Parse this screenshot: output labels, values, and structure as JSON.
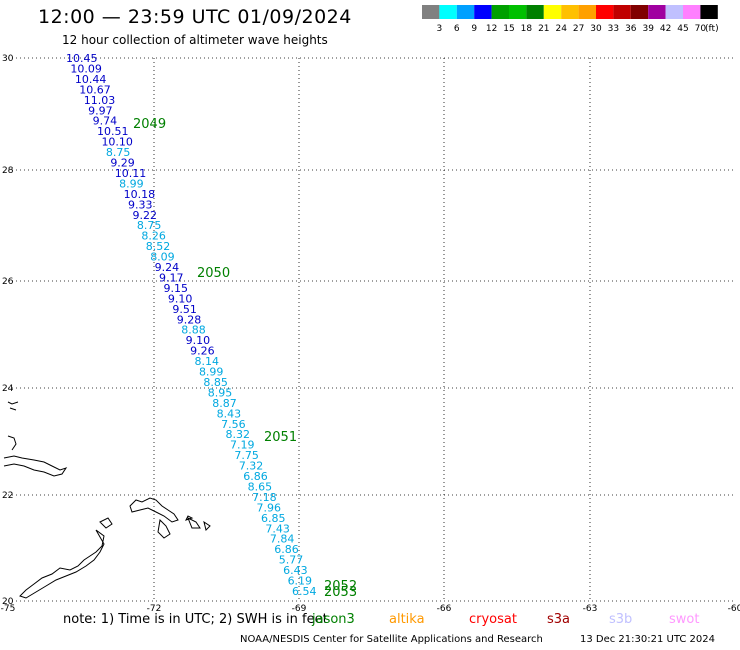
{
  "header": {
    "title": "12:00 — 23:59 UTC 01/09/2024",
    "subtitle": "12 hour collection of altimeter wave heights"
  },
  "colorbar": {
    "unit": "(ft)",
    "colors": [
      "#808080",
      "#00ffff",
      "#00a0ff",
      "#0000ff",
      "#00a000",
      "#00c000",
      "#008000",
      "#ffff00",
      "#ffc000",
      "#ffa000",
      "#ff0000",
      "#c00000",
      "#800000",
      "#a000a0",
      "#c0c0ff",
      "#ff80ff",
      "#000000"
    ],
    "labels": [
      "3",
      "6",
      "9",
      "12",
      "15",
      "18",
      "21",
      "24",
      "27",
      "30",
      "33",
      "36",
      "39",
      "42",
      "45",
      "70"
    ]
  },
  "axes": {
    "lon_labels": [
      "-75",
      "-72",
      "-69",
      "-66",
      "-63",
      "-60"
    ],
    "lat_labels": [
      "30",
      "28",
      "26",
      "24",
      "22",
      "20"
    ]
  },
  "track": {
    "labels": [
      {
        "v": "10.45",
        "c": "#0000c8"
      },
      {
        "v": "10.09",
        "c": "#0000c8"
      },
      {
        "v": "10.44",
        "c": "#0000c8"
      },
      {
        "v": "10.67",
        "c": "#0000c8"
      },
      {
        "v": "11.03",
        "c": "#0000c8"
      },
      {
        "v": "9.97",
        "c": "#0000c8"
      },
      {
        "v": "9.74",
        "c": "#0000c8"
      },
      {
        "v": "10.51",
        "c": "#0000c8"
      },
      {
        "v": "10.10",
        "c": "#0000c8"
      },
      {
        "v": "8.75",
        "c": "#00a8e0"
      },
      {
        "v": "9.29",
        "c": "#0000c8"
      },
      {
        "v": "10.11",
        "c": "#0000c8"
      },
      {
        "v": "8.99",
        "c": "#00a8e0"
      },
      {
        "v": "10.18",
        "c": "#0000c8"
      },
      {
        "v": "9.33",
        "c": "#0000c8"
      },
      {
        "v": "9.22",
        "c": "#0000c8"
      },
      {
        "v": "8.75",
        "c": "#00a8e0"
      },
      {
        "v": "8.26",
        "c": "#00a8e0"
      },
      {
        "v": "8.52",
        "c": "#00a8e0"
      },
      {
        "v": "8.09",
        "c": "#00a8e0"
      },
      {
        "v": "9.24",
        "c": "#0000c8"
      },
      {
        "v": "9.17",
        "c": "#0000c8"
      },
      {
        "v": "9.15",
        "c": "#0000c8"
      },
      {
        "v": "9.10",
        "c": "#0000c8"
      },
      {
        "v": "9.51",
        "c": "#0000c8"
      },
      {
        "v": "9.28",
        "c": "#0000c8"
      },
      {
        "v": "8.88",
        "c": "#00a8e0"
      },
      {
        "v": "9.10",
        "c": "#0000c8"
      },
      {
        "v": "9.26",
        "c": "#0000c8"
      },
      {
        "v": "8.14",
        "c": "#00a8e0"
      },
      {
        "v": "8.99",
        "c": "#00a8e0"
      },
      {
        "v": "8.85",
        "c": "#00a8e0"
      },
      {
        "v": "8.95",
        "c": "#00a8e0"
      },
      {
        "v": "8.87",
        "c": "#00a8e0"
      },
      {
        "v": "8.43",
        "c": "#00a8e0"
      },
      {
        "v": "7.56",
        "c": "#00a8e0"
      },
      {
        "v": "8.32",
        "c": "#00a8e0"
      },
      {
        "v": "7.19",
        "c": "#00a8e0"
      },
      {
        "v": "7.75",
        "c": "#00a8e0"
      },
      {
        "v": "7.32",
        "c": "#00a8e0"
      },
      {
        "v": "6.86",
        "c": "#00a8e0"
      },
      {
        "v": "8.65",
        "c": "#00a8e0"
      },
      {
        "v": "7.18",
        "c": "#00a8e0"
      },
      {
        "v": "7.96",
        "c": "#00a8e0"
      },
      {
        "v": "6.85",
        "c": "#00a8e0"
      },
      {
        "v": "7.43",
        "c": "#00a8e0"
      },
      {
        "v": "7.84",
        "c": "#00a8e0"
      },
      {
        "v": "6.86",
        "c": "#00a8e0"
      },
      {
        "v": "5.77",
        "c": "#00a8e0"
      },
      {
        "v": "6.43",
        "c": "#00a8e0"
      },
      {
        "v": "6.19",
        "c": "#00a8e0"
      },
      {
        "v": "6.54",
        "c": "#00a8e0"
      }
    ],
    "time_markers": [
      {
        "v": "2049",
        "c": "#008000"
      },
      {
        "v": "2050",
        "c": "#008000"
      },
      {
        "v": "2051",
        "c": "#008000"
      },
      {
        "v": "2052",
        "c": "#008000"
      },
      {
        "v": "2053",
        "c": "#008000"
      }
    ]
  },
  "footer": {
    "note": "note:  1) Time is in UTC;  2) SWH is in feet",
    "satellites": [
      {
        "name": "jason3",
        "color": "#008000"
      },
      {
        "name": "altika",
        "color": "#ff9900"
      },
      {
        "name": "cryosat",
        "color": "#ff0000"
      },
      {
        "name": "s3a",
        "color": "#a00000"
      },
      {
        "name": "s3b",
        "color": "#c0c0ff"
      },
      {
        "name": "swot",
        "color": "#ff99ff"
      }
    ],
    "credit": "NOAA/NESDIS Center for Satellite Applications and Research",
    "timestamp": "13 Dec 21:30:21 UTC 2024"
  }
}
